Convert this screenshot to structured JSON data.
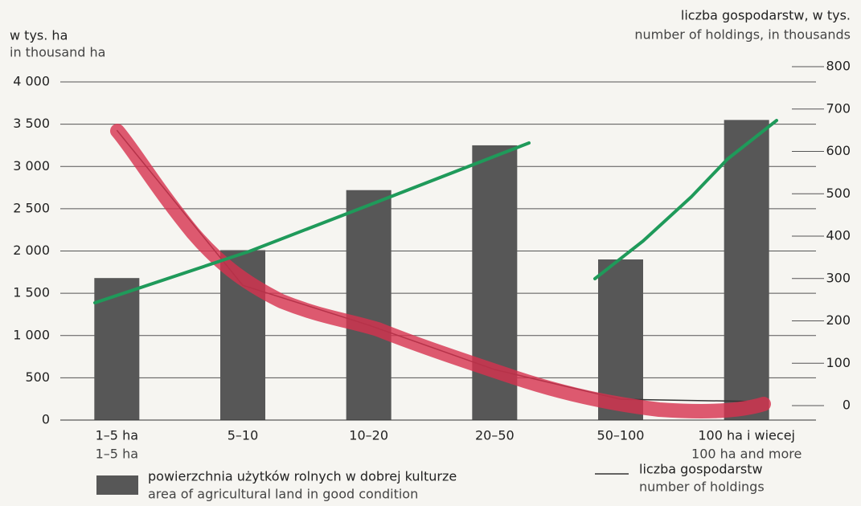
{
  "chart_data": {
    "type": "bar-line",
    "y_label": "w tys. ha",
    "y_label_en": "in thousand ha",
    "y2_label": "liczba gospodarstw, w tys.",
    "y2_label_en": "number of holdings, in thousands",
    "categories": [
      "1–5 ha",
      "5–10",
      "10–20",
      "20–50",
      "50–100",
      "100 ha i wiecej"
    ],
    "categories_en": [
      "1–5 ha",
      null,
      null,
      null,
      null,
      "100 ha and more"
    ],
    "series": [
      {
        "name": "powierzchnia użytków rolnych w dobrej kulturze",
        "name_en": "area of agricultural land in good condition",
        "type": "bar",
        "color": "#575757",
        "values": [
          1680,
          2010,
          2720,
          3250,
          1900,
          3550
        ]
      },
      {
        "name": "liczba gospodarstw",
        "name_en": "number of holdings",
        "type": "line",
        "axis": "y2",
        "color": "#333333",
        "values": [
          650,
          284,
          190,
          85,
          15,
          10
        ]
      }
    ],
    "ylim": [
      0,
      4000
    ],
    "yticks": [
      0,
      500,
      {
        "value": 1000,
        "label": "1 000"
      },
      {
        "value": 1500,
        "label": "1 500"
      },
      {
        "value": 2000,
        "label": "2 000"
      },
      {
        "value": 2500,
        "label": "2 500"
      },
      {
        "value": 3000,
        "label": "3 000"
      },
      {
        "value": 3500,
        "label": "3 500"
      },
      {
        "value": 4000,
        "label": "4 000"
      }
    ],
    "y2lim": [
      0,
      800
    ],
    "y2ticks": [
      0,
      100,
      200,
      300,
      400,
      500,
      600,
      700,
      800
    ],
    "grid": true
  }
}
